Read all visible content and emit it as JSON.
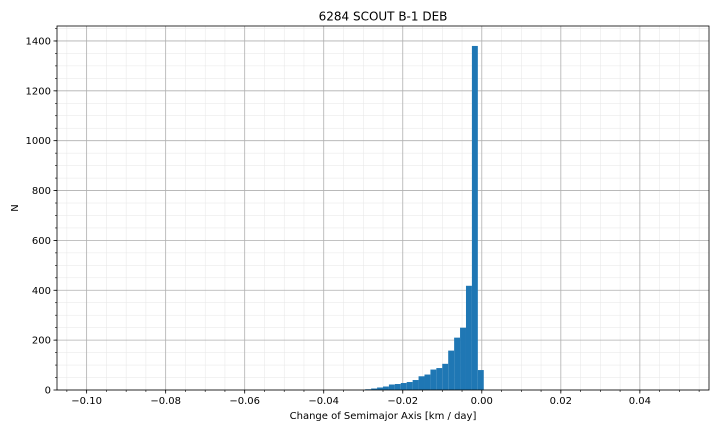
{
  "chart_data": {
    "type": "bar",
    "title": "6284 SCOUT B-1 DEB",
    "xlabel": "Change of Semimajor Axis [km / day]",
    "ylabel": "N",
    "xlim": [
      -0.1075,
      0.0575
    ],
    "ylim": [
      0,
      1460
    ],
    "xticks": [
      -0.1,
      -0.08,
      -0.06,
      -0.04,
      -0.02,
      0.0,
      0.02,
      0.04
    ],
    "xtick_labels": [
      "−0.10",
      "−0.08",
      "−0.06",
      "−0.04",
      "−0.02",
      "0.00",
      "0.02",
      "0.04"
    ],
    "yticks": [
      0,
      200,
      400,
      600,
      800,
      1000,
      1200,
      1400
    ],
    "ytick_labels": [
      "0",
      "200",
      "400",
      "600",
      "800",
      "1000",
      "1200",
      "1400"
    ],
    "grid": true,
    "minor_grid": true,
    "bar_color": "#1f77b4",
    "bin_width": 0.0015,
    "bin_starts": [
      -0.0295,
      -0.028,
      -0.0265,
      -0.025,
      -0.0235,
      -0.022,
      -0.0205,
      -0.019,
      -0.0175,
      -0.016,
      -0.0145,
      -0.013,
      -0.0115,
      -0.01,
      -0.0085,
      -0.007,
      -0.0055,
      -0.004,
      -0.0025,
      -0.001
    ],
    "values": [
      3,
      6,
      10,
      14,
      22,
      24,
      28,
      32,
      40,
      55,
      62,
      82,
      88,
      105,
      158,
      210,
      250,
      418,
      1380,
      80
    ]
  }
}
